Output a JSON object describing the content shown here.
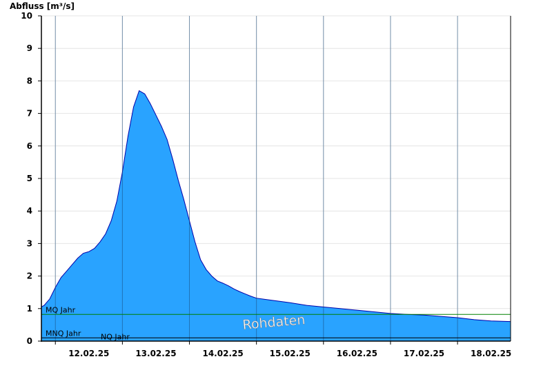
{
  "chart_data": {
    "type": "area",
    "ylabel": "Abfluss [m³/s]",
    "ylim": [
      0,
      10
    ],
    "yticks": [
      "0",
      "1",
      "2",
      "3",
      "4",
      "5",
      "6",
      "7",
      "8",
      "9",
      "10"
    ],
    "xlim": [
      "11.02.25 19:00",
      "18.02.25 19:00"
    ],
    "xticks": [
      {
        "label": "12.02.25",
        "at": "12.02.25 00:00"
      },
      {
        "label": "13.02.25",
        "at": "13.02.25 00:00"
      },
      {
        "label": "14.02.25",
        "at": "14.02.25 00:00"
      },
      {
        "label": "15.02.25",
        "at": "15.02.25 00:00"
      },
      {
        "label": "16.02.25",
        "at": "16.02.25 00:00"
      },
      {
        "label": "17.02.25",
        "at": "17.02.25 00:00"
      },
      {
        "label": "18.02.25",
        "at": "18.02.25 00:00"
      }
    ],
    "grid": true,
    "colors": {
      "fill": "#29a3ff",
      "outline": "#0000aa",
      "mq": "#008000",
      "nq": "#000000",
      "grid": "#e4e4e4"
    },
    "reference_lines": [
      {
        "label": "MQ Jahr",
        "value": 0.82
      },
      {
        "label": "MNQ Jahr",
        "value": 0.1
      },
      {
        "label": "NQ Jahr",
        "value": 0.1
      }
    ],
    "watermark": "Rohdaten",
    "series": [
      {
        "x": [
          "11.02.25 19:00",
          "11.02.25 20:00",
          "11.02.25 22:00",
          "12.02.25 00:00",
          "12.02.25 02:00",
          "12.02.25 04:00",
          "12.02.25 06:00",
          "12.02.25 08:00",
          "12.02.25 10:00",
          "12.02.25 12:00",
          "12.02.25 14:00",
          "12.02.25 16:00",
          "12.02.25 18:00",
          "12.02.25 20:00",
          "12.02.25 22:00",
          "13.02.25 00:00",
          "13.02.25 02:00",
          "13.02.25 04:00",
          "13.02.25 06:00",
          "13.02.25 08:00",
          "13.02.25 10:00",
          "13.02.25 12:00",
          "13.02.25 14:00",
          "13.02.25 16:00",
          "13.02.25 18:00",
          "13.02.25 20:00",
          "13.02.25 22:00",
          "14.02.25 00:00",
          "14.02.25 02:00",
          "14.02.25 04:00",
          "14.02.25 06:00",
          "14.02.25 08:00",
          "14.02.25 10:00",
          "14.02.25 12:00",
          "14.02.25 14:00",
          "14.02.25 16:00",
          "14.02.25 18:00",
          "14.02.25 20:00",
          "14.02.25 22:00",
          "15.02.25 00:00",
          "15.02.25 06:00",
          "15.02.25 12:00",
          "15.02.25 18:00",
          "16.02.25 00:00",
          "16.02.25 06:00",
          "16.02.25 12:00",
          "16.02.25 18:00",
          "17.02.25 00:00",
          "17.02.25 06:00",
          "17.02.25 12:00",
          "17.02.25 18:00",
          "18.02.25 00:00",
          "18.02.25 06:00",
          "18.02.25 12:00",
          "18.02.25 19:00"
        ],
        "y": [
          1.05,
          1.1,
          1.3,
          1.65,
          1.95,
          2.15,
          2.35,
          2.55,
          2.7,
          2.75,
          2.85,
          3.05,
          3.3,
          3.7,
          4.3,
          5.2,
          6.3,
          7.2,
          7.7,
          7.6,
          7.3,
          6.95,
          6.6,
          6.2,
          5.6,
          4.95,
          4.35,
          3.7,
          3.05,
          2.5,
          2.2,
          2.0,
          1.85,
          1.78,
          1.7,
          1.6,
          1.52,
          1.45,
          1.38,
          1.32,
          1.25,
          1.18,
          1.1,
          1.05,
          1.0,
          0.95,
          0.9,
          0.85,
          0.82,
          0.8,
          0.76,
          0.72,
          0.66,
          0.62,
          0.6
        ]
      }
    ]
  }
}
